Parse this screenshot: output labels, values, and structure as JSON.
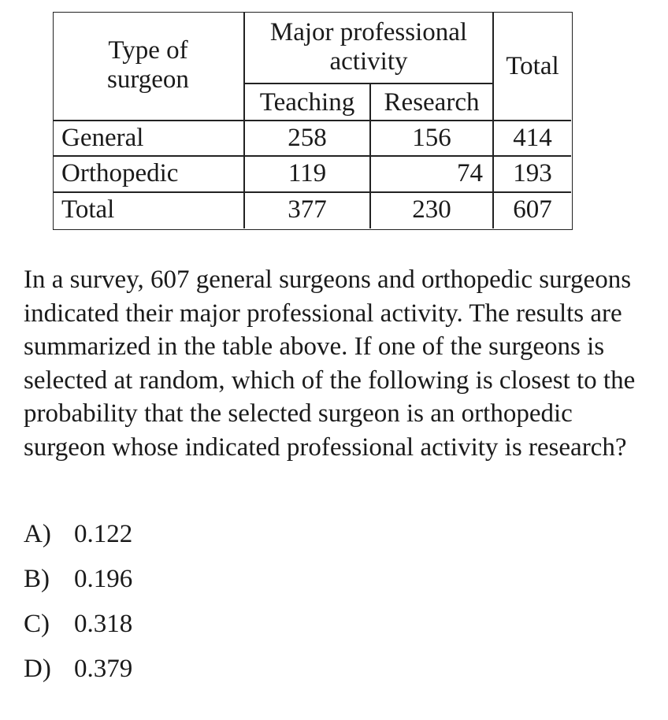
{
  "table": {
    "row_header": "Type of surgeon",
    "group_header": "Major professional activity",
    "col_teaching": "Teaching",
    "col_research": "Research",
    "col_total": "Total",
    "rows": [
      {
        "label": "General",
        "teaching": "258",
        "research": "156",
        "total": "414"
      },
      {
        "label": "Orthopedic",
        "teaching": "119",
        "research": "74",
        "total": "193"
      },
      {
        "label": "Total",
        "teaching": "377",
        "research": "230",
        "total": "607"
      }
    ]
  },
  "question": "In a survey, 607 general surgeons and orthopedic surgeons indicated their major professional activity. The results are summarized in the table above. If one of the surgeons is selected at random, which of the following is closest to the probability that the selected surgeon is an orthopedic surgeon whose indicated professional activity is research?",
  "choices": [
    {
      "letter": "A)",
      "value": "0.122"
    },
    {
      "letter": "B)",
      "value": "0.196"
    },
    {
      "letter": "C)",
      "value": "0.318"
    },
    {
      "letter": "D)",
      "value": "0.379"
    }
  ]
}
